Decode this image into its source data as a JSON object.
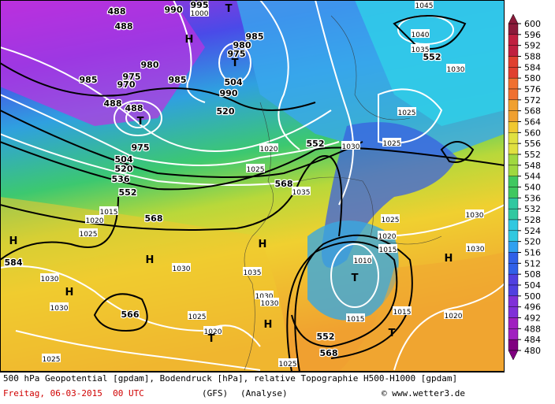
{
  "map": {
    "legend": {
      "labels": [
        600,
        596,
        592,
        588,
        584,
        580,
        576,
        572,
        568,
        564,
        560,
        556,
        552,
        548,
        544,
        540,
        536,
        532,
        528,
        524,
        520,
        516,
        512,
        508,
        504,
        500,
        496,
        492,
        488,
        484,
        480
      ]
    },
    "map_labels": [
      "488",
      "488",
      "990",
      "995",
      "1000",
      "T",
      "H",
      "985",
      "980",
      "975",
      "T",
      "504",
      "985",
      "990",
      "980",
      "985",
      "975",
      "970",
      "488",
      "488",
      "T",
      "520",
      "975",
      "504",
      "520",
      "536",
      "552",
      "1015",
      "568",
      "1020",
      "1025",
      "1045",
      "1040",
      "1035",
      "552",
      "1030",
      "1025",
      "1025",
      "1030",
      "552",
      "1020",
      "1025",
      "568",
      "1035",
      "H",
      "584",
      "1030",
      "H",
      "1030",
      "H",
      "1030",
      "1035",
      "H",
      "1030",
      "1030",
      "566",
      "1025",
      "1020",
      "T",
      "H",
      "552",
      "568",
      "1025",
      "1025",
      "1010",
      "T",
      "1015",
      "T",
      "1015",
      "1020",
      "H",
      "1030",
      "1025",
      "1020",
      "1015",
      "1030"
    ],
    "footer": {
      "line1": "500 hPa Geopotential [gpdam], Bodendruck [hPa], relative Topographie H500-H1000 [gpdam]",
      "date": "Freitag, 06-03-2015  00 UTC",
      "model": "(GFS)",
      "run": "(Analyse)",
      "credit": "© www.wetter3.de"
    }
  }
}
